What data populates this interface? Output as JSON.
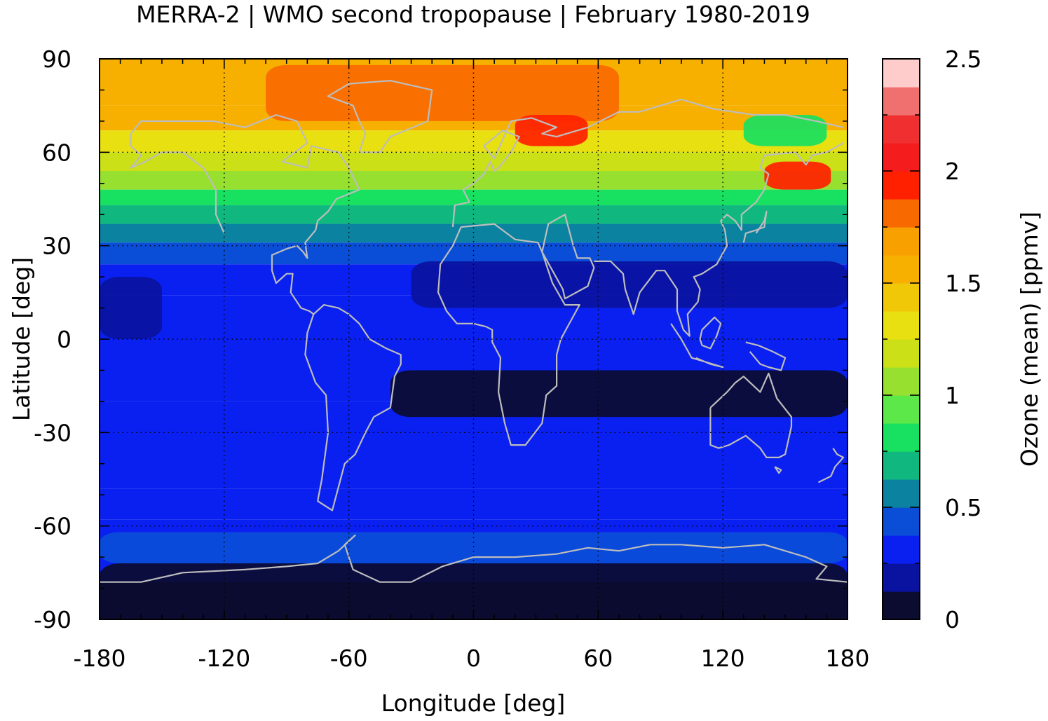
{
  "chart_data": {
    "type": "heatmap",
    "title": "MERRA-2 | WMO second tropopause | February 1980-2019",
    "xlabel": "Longitude [deg]",
    "ylabel": "Latitude [deg]",
    "colorbar_label": "Ozone (mean) [ppmv]",
    "xlim": [
      -180,
      180
    ],
    "ylim": [
      -90,
      90
    ],
    "x_ticks": [
      "-180",
      "-120",
      "-60",
      "0",
      "60",
      "120",
      "180"
    ],
    "y_ticks": [
      "90",
      "60",
      "30",
      "0",
      "-30",
      "-60",
      "-90"
    ],
    "colorbar_ticks": [
      "2.5",
      "2",
      "1.5",
      "1",
      "0.5",
      "0"
    ],
    "grid": true,
    "colorbar": {
      "range": [
        0,
        2.5
      ],
      "colors": [
        "#0c0c30",
        "#0a12a0",
        "#0a20f0",
        "#0a4ed8",
        "#0a82a0",
        "#10b880",
        "#18e060",
        "#5ce848",
        "#98e030",
        "#cce018",
        "#e8e010",
        "#f0c808",
        "#f8b000",
        "#f8a000",
        "#f86a00",
        "#ff2000",
        "#f41c1c",
        "#f03030",
        "#f07070",
        "#ffcccc"
      ]
    },
    "latitude_bands": [
      {
        "lat": [
          75,
          90
        ],
        "value": 1.62
      },
      {
        "lat": [
          67,
          75
        ],
        "value": 1.55
      },
      {
        "lat": [
          60,
          67
        ],
        "value": 1.35
      },
      {
        "lat": [
          54,
          60
        ],
        "value": 1.15
      },
      {
        "lat": [
          48,
          54
        ],
        "value": 1.0
      },
      {
        "lat": [
          43,
          48
        ],
        "value": 0.85
      },
      {
        "lat": [
          37,
          43
        ],
        "value": 0.7
      },
      {
        "lat": [
          31,
          37
        ],
        "value": 0.55
      },
      {
        "lat": [
          24,
          31
        ],
        "value": 0.4
      },
      {
        "lat": [
          14,
          24
        ],
        "value": 0.3
      },
      {
        "lat": [
          -20,
          14
        ],
        "value": 0.3
      },
      {
        "lat": [
          -48,
          -20
        ],
        "value": 0.3
      },
      {
        "lat": [
          -58,
          -48
        ],
        "value": 0.35
      },
      {
        "lat": [
          -68,
          -58
        ],
        "value": 0.35
      },
      {
        "lat": [
          -78,
          -68
        ],
        "value": 0.3
      },
      {
        "lat": [
          -90,
          -78
        ],
        "value": 0.05
      }
    ],
    "features": [
      {
        "lon": [
          -100,
          70
        ],
        "lat": [
          70,
          88
        ],
        "value": 1.85
      },
      {
        "lon": [
          20,
          55
        ],
        "lat": [
          62,
          72
        ],
        "value": 1.95
      },
      {
        "lon": [
          130,
          170
        ],
        "lat": [
          62,
          72
        ],
        "value": 0.8
      },
      {
        "lon": [
          140,
          172
        ],
        "lat": [
          48,
          57
        ],
        "value": 1.95
      },
      {
        "lon": [
          -30,
          180
        ],
        "lat": [
          10,
          25
        ],
        "value": 0.15
      },
      {
        "lon": [
          -40,
          180
        ],
        "lat": [
          -25,
          -10
        ],
        "value": 0.12
      },
      {
        "lon": [
          -180,
          -150
        ],
        "lat": [
          0,
          20
        ],
        "value": 0.15
      },
      {
        "lon": [
          -180,
          180
        ],
        "lat": [
          -72,
          -62
        ],
        "value": 0.4
      },
      {
        "lon": [
          -180,
          180
        ],
        "lat": [
          -90,
          -72
        ],
        "value": 0.05
      }
    ]
  }
}
